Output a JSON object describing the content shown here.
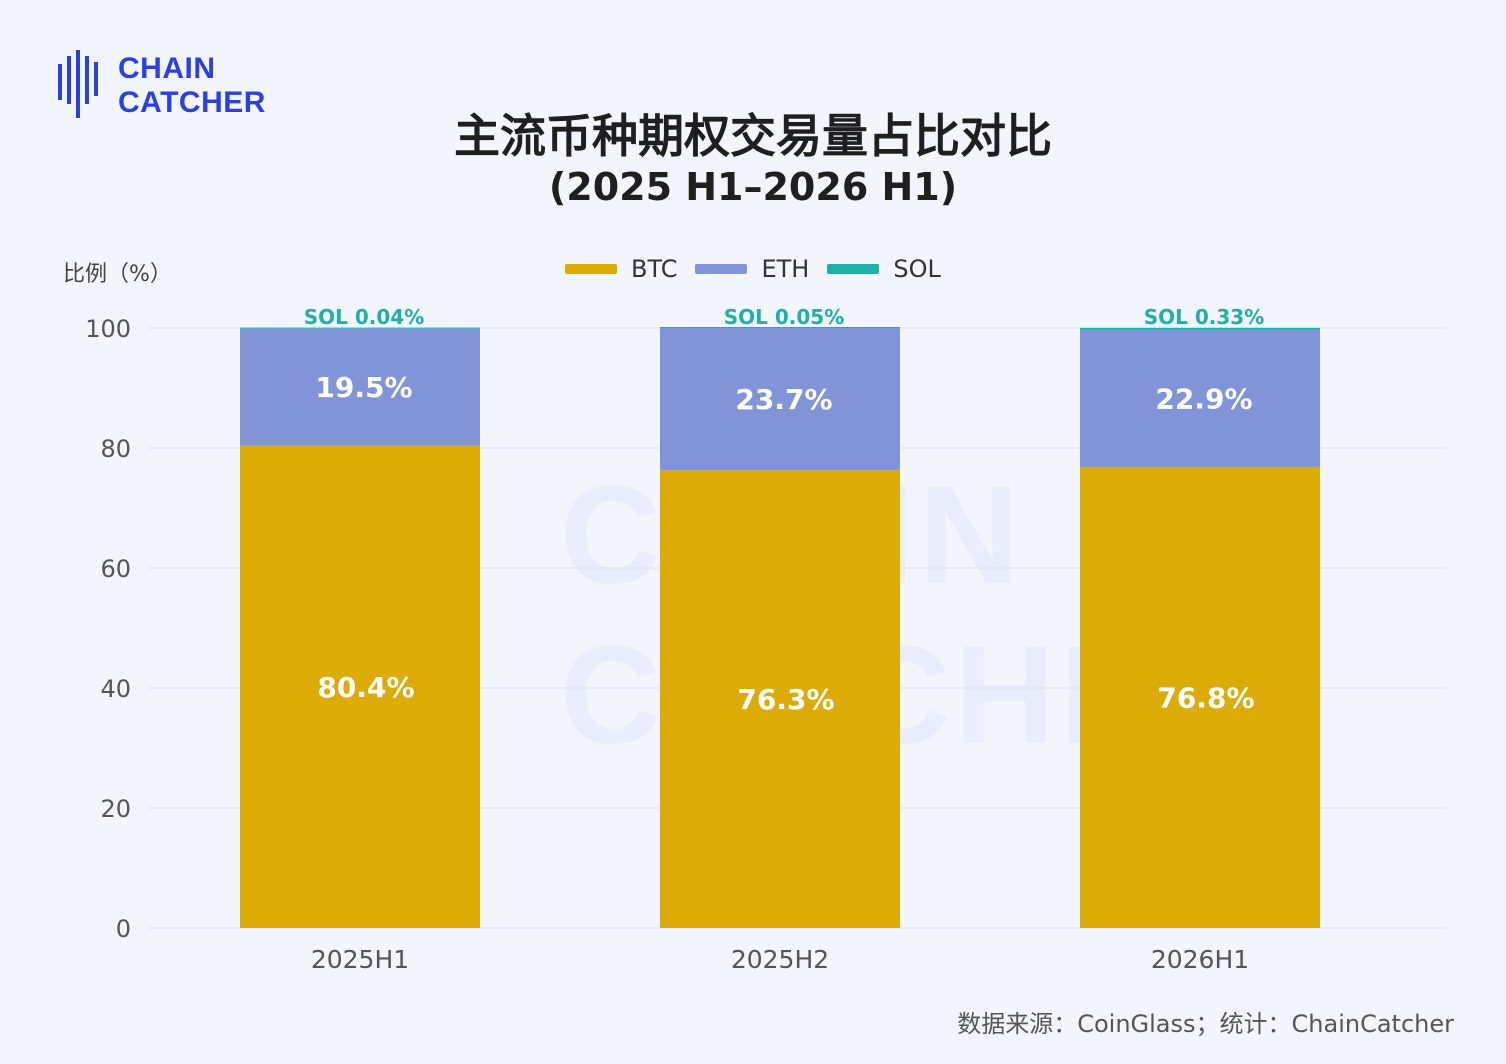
{
  "logo": {
    "line1": "CHAIN",
    "line2": "CATCHER"
  },
  "watermark": {
    "line1": "CHAIN",
    "line2": "CATCHER"
  },
  "source": "数据来源：CoinGlass；统计：ChainCatcher",
  "colors": {
    "BTC": "#dcab06",
    "ETH": "#8294d8",
    "SOL": "#1fb0a8",
    "grid": "#dde1ef",
    "background": "#f3f5fd"
  },
  "chart_data": {
    "type": "bar",
    "stacked": true,
    "title": "主流币种期权交易量占比对比",
    "subtitle": "(2025 H1–2026 H1)",
    "ylabel": "比例（%）",
    "xlabel": "",
    "ylim": [
      0,
      100
    ],
    "yticks": [
      0,
      20,
      40,
      60,
      80,
      100
    ],
    "grid": true,
    "legend_position": "top-center",
    "categories": [
      "2025H1",
      "2025H2",
      "2026H1"
    ],
    "series": [
      {
        "name": "BTC",
        "values": [
          80.4,
          76.3,
          76.8
        ],
        "labels": [
          "80.4%",
          "76.3%",
          "76.8%"
        ]
      },
      {
        "name": "ETH",
        "values": [
          19.5,
          23.7,
          22.9
        ],
        "labels": [
          "19.5%",
          "23.7%",
          "22.9%"
        ]
      },
      {
        "name": "SOL",
        "values": [
          0.04,
          0.05,
          0.33
        ],
        "labels": [
          "SOL 0.04%",
          "SOL 0.05%",
          "SOL 0.33%"
        ]
      }
    ]
  }
}
